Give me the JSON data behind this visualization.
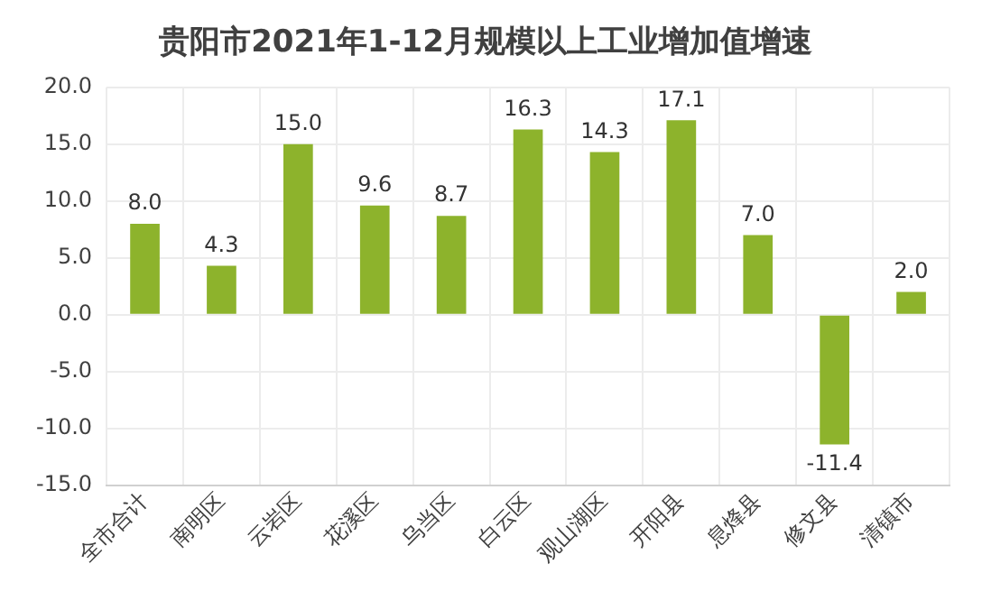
{
  "chart_data": {
    "type": "bar",
    "title": "贵阳市2021年1-12月规模以上工业增加值增速",
    "categories": [
      "全市合计",
      "南明区",
      "云岩区",
      "花溪区",
      "乌当区",
      "白云区",
      "观山湖区",
      "开阳县",
      "息烽县",
      "修文县",
      "清镇市"
    ],
    "values": [
      8.0,
      4.3,
      15.0,
      9.6,
      8.7,
      16.3,
      14.3,
      17.1,
      7.0,
      -11.4,
      2.0
    ],
    "value_labels": [
      "8.0",
      "4.3",
      "15.0",
      "9.6",
      "8.7",
      "16.3",
      "14.3",
      "17.1",
      "7.0",
      "-11.4",
      "2.0"
    ],
    "color": "#8db32c",
    "ylim": [
      -15,
      20
    ],
    "yticks": [
      {
        "value": -15,
        "label": "-15.0"
      },
      {
        "value": -10,
        "label": "-10.0"
      },
      {
        "value": -5,
        "label": "-5.0"
      },
      {
        "value": 0,
        "label": "0.0"
      },
      {
        "value": 5,
        "label": "5.0"
      },
      {
        "value": 10,
        "label": "10.0"
      },
      {
        "value": 15,
        "label": "15.0"
      },
      {
        "value": 20,
        "label": "20.0"
      }
    ],
    "grid": true
  }
}
